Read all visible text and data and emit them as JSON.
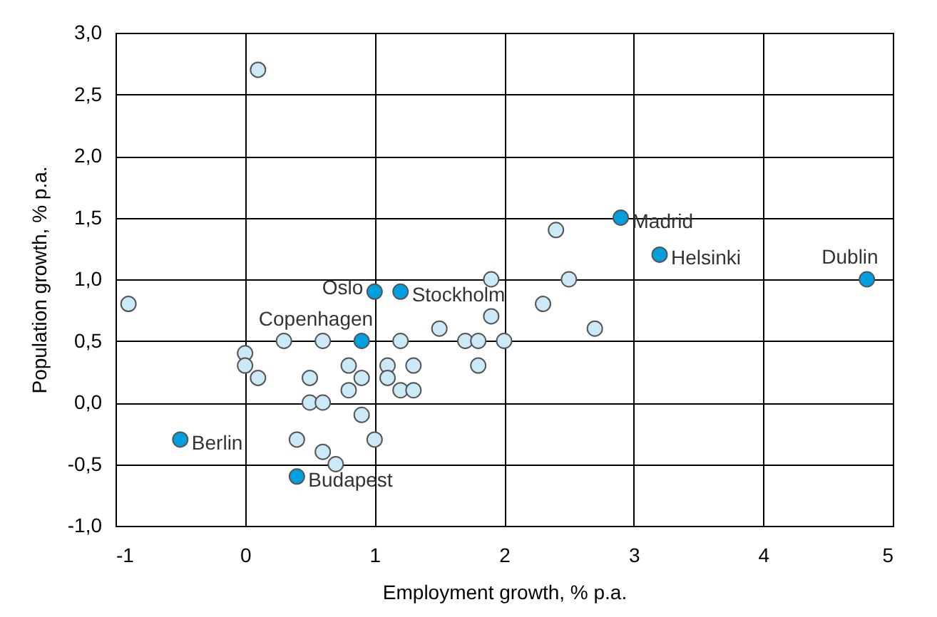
{
  "chart_data": {
    "type": "scatter",
    "xlabel": "Employment growth, % p.a.",
    "ylabel": "Population growth, % p.a.",
    "xlim": [
      -1,
      5
    ],
    "xticks": [
      -1,
      0,
      1,
      2,
      3,
      4,
      5
    ],
    "ylim": [
      -1,
      3
    ],
    "yticks": [
      {
        "value": -1,
        "label": "-1,0"
      },
      {
        "value": -0.5,
        "label": "-0,5"
      },
      {
        "value": 0,
        "label": "0,0"
      },
      {
        "value": 0.5,
        "label": "0,5"
      },
      {
        "value": 1,
        "label": "1,0"
      },
      {
        "value": 1.5,
        "label": "1,5"
      },
      {
        "value": 2,
        "label": "2,0"
      },
      {
        "value": 2.5,
        "label": "2,5"
      },
      {
        "value": 3,
        "label": "3,0"
      }
    ],
    "grid": true,
    "marker": "circle",
    "series": [
      {
        "color": "#cce9f7",
        "x": [
          0.1,
          -0.9,
          0.0,
          0.0,
          0.1,
          0.3,
          0.6,
          1.2,
          0.5,
          0.5,
          0.6,
          0.8,
          0.9,
          0.8,
          0.9,
          1.1,
          1.1,
          1.3,
          1.2,
          1.3,
          1.5,
          1.7,
          1.8,
          2.0,
          1.8,
          1.9,
          1.9,
          0.4,
          1.0,
          0.6,
          0.7,
          2.3,
          2.4,
          2.5,
          2.7
        ],
        "values": [
          2.7,
          0.8,
          0.4,
          0.3,
          0.2,
          0.5,
          0.5,
          0.5,
          0.2,
          0.0,
          0.0,
          0.3,
          0.2,
          0.1,
          -0.1,
          0.3,
          0.2,
          0.3,
          0.1,
          0.1,
          0.6,
          0.5,
          0.5,
          0.5,
          0.3,
          1.0,
          0.7,
          -0.3,
          -0.3,
          -0.4,
          -0.5,
          0.8,
          1.4,
          1.0,
          0.6
        ]
      },
      {
        "color": "#00a0e0",
        "x": [
          2.9,
          3.2,
          4.8,
          1.0,
          1.2,
          0.9,
          -0.5,
          0.4
        ],
        "values": [
          1.5,
          1.2,
          1.0,
          0.9,
          0.9,
          0.5,
          -0.3,
          -0.6
        ]
      }
    ],
    "annotations": [
      {
        "text": "Madrid",
        "x": 2.9,
        "y": 1.5
      },
      {
        "text": "Helsinki",
        "x": 3.2,
        "y": 1.2
      },
      {
        "text": "Dublin",
        "x": 4.8,
        "y": 1.0
      },
      {
        "text": "Oslo",
        "x": 1.0,
        "y": 0.9
      },
      {
        "text": "Stockholm",
        "x": 1.2,
        "y": 0.9
      },
      {
        "text": "Copenhagen",
        "x": 0.9,
        "y": 0.5
      },
      {
        "text": "Berlin",
        "x": -0.5,
        "y": -0.3
      },
      {
        "text": "Budapest",
        "x": 0.4,
        "y": -0.6
      }
    ]
  }
}
